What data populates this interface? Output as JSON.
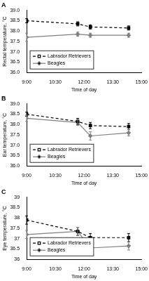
{
  "chart_data": [
    {
      "type": "line",
      "title": "A",
      "x_label": "Time of day",
      "y_label": "Rectal temperature, °C",
      "x": [
        9,
        11.67,
        12.33,
        14.33
      ],
      "xlim": [
        9,
        15
      ],
      "xticks": [
        {
          "value": 9,
          "label": "9:00"
        },
        {
          "value": 10.5,
          "label": "10:30"
        },
        {
          "value": 12,
          "label": "12:00"
        },
        {
          "value": 13.5,
          "label": "13:30"
        },
        {
          "value": 15,
          "label": "15:00"
        }
      ],
      "ylim": [
        36,
        39
      ],
      "yticks": [
        {
          "value": 36,
          "label": "36.0"
        },
        {
          "value": 36.5,
          "label": "36.5"
        },
        {
          "value": 37,
          "label": "37.0"
        },
        {
          "value": 37.5,
          "label": "37.5"
        },
        {
          "value": 38,
          "label": "38.0"
        },
        {
          "value": 38.5,
          "label": "38.5"
        },
        {
          "value": 39,
          "label": "39.0"
        }
      ],
      "grid": false,
      "legend": "lower left",
      "series": [
        {
          "name": "Labrador Retrievers",
          "color": "#000000",
          "marker": "square",
          "line_style": "dashed",
          "values": [
            38.5,
            38.35,
            38.2,
            38.15
          ],
          "errors": [
            0.1,
            0.1,
            0.1,
            0.1
          ]
        },
        {
          "name": "Beagles",
          "color": "#7f7f7f",
          "marker": "diamond",
          "line_style": "solid",
          "values": [
            37.7,
            37.85,
            37.8,
            37.8
          ],
          "errors": [
            0.2,
            0.1,
            0.1,
            0.1
          ]
        }
      ]
    },
    {
      "type": "line",
      "title": "B",
      "x_label": "Time of day",
      "y_label": "Ear temperature, °C",
      "x": [
        9,
        11.67,
        12.33,
        14.33
      ],
      "xlim": [
        9,
        15
      ],
      "xticks": [
        {
          "value": 9,
          "label": "9:00"
        },
        {
          "value": 10.5,
          "label": "10:30"
        },
        {
          "value": 12,
          "label": "12:00"
        },
        {
          "value": 13.5,
          "label": "13:30"
        },
        {
          "value": 15,
          "label": "15:00"
        }
      ],
      "ylim": [
        36,
        39
      ],
      "yticks": [
        {
          "value": 36,
          "label": "36.0"
        },
        {
          "value": 36.5,
          "label": "36.5"
        },
        {
          "value": 37,
          "label": "37.0"
        },
        {
          "value": 37.5,
          "label": "37.5"
        },
        {
          "value": 38,
          "label": "38.0"
        },
        {
          "value": 38.5,
          "label": "38.5"
        },
        {
          "value": 39,
          "label": "39.0"
        }
      ],
      "grid": false,
      "legend": "lower left",
      "series": [
        {
          "name": "Labrador Retrievers",
          "color": "#000000",
          "marker": "square",
          "line_style": "dashed",
          "values": [
            38.5,
            38.15,
            37.95,
            37.9
          ],
          "errors": [
            0.1,
            0.15,
            0.15,
            0.15
          ]
        },
        {
          "name": "Beagles",
          "color": "#7f7f7f",
          "marker": "diamond",
          "line_style": "solid",
          "values": [
            38.3,
            38.1,
            37.45,
            37.6
          ],
          "errors": [
            0.15,
            0.15,
            0.2,
            0.15
          ]
        }
      ]
    },
    {
      "type": "line",
      "title": "C",
      "x_label": "Time of day",
      "y_label": "Eye temperature, °C",
      "x": [
        9,
        11.67,
        12.33,
        14.33
      ],
      "xlim": [
        9,
        15
      ],
      "xticks": [
        {
          "value": 9,
          "label": "9:00"
        },
        {
          "value": 10.5,
          "label": "10:30"
        },
        {
          "value": 12,
          "label": "12:00"
        },
        {
          "value": 13.5,
          "label": "13:30"
        },
        {
          "value": 15,
          "label": "15:00"
        }
      ],
      "ylim": [
        36,
        39
      ],
      "yticks": [
        36,
        36.5,
        37,
        37.5,
        38,
        38.5,
        39
      ],
      "grid": false,
      "legend": "lower left",
      "series": [
        {
          "name": "Labrador Retrievers",
          "color": "#000000",
          "marker": "square",
          "line_style": "dashed",
          "values": [
            37.9,
            37.35,
            37.05,
            37.05
          ],
          "errors": [
            0.2,
            0.2,
            0.2,
            0.2
          ]
        },
        {
          "name": "Beagles",
          "color": "#7f7f7f",
          "marker": "diamond",
          "line_style": "solid",
          "values": [
            37.2,
            37.35,
            36.55,
            36.65
          ],
          "errors": [
            0.2,
            0.2,
            0.2,
            0.2
          ]
        }
      ]
    }
  ]
}
